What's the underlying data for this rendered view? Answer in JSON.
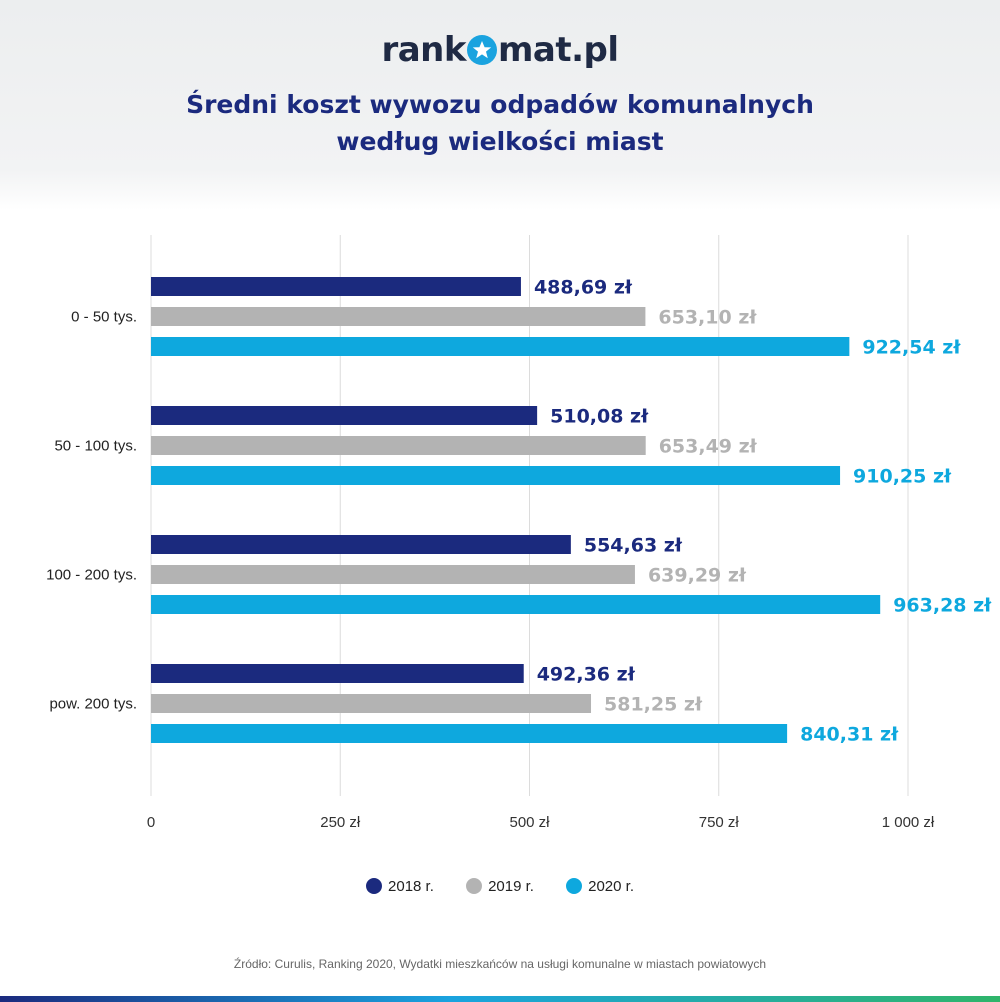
{
  "brand": {
    "logo_left": "rank",
    "logo_right": "mat.pl"
  },
  "title_line1": "Średni koszt wywozu odpadów komunalnych",
  "title_line2": "według wielkości miast",
  "legend": [
    {
      "label": "2018 r.",
      "color": "#1b2a7e"
    },
    {
      "label": "2019 r.",
      "color": "#b3b3b3"
    },
    {
      "label": "2020 r.",
      "color": "#0ea8de"
    }
  ],
  "source": "Źródło: Curulis, Ranking 2020, Wydatki mieszkańców na usługi komunalne w miastach powiatowych",
  "chart_data": {
    "type": "bar",
    "orientation": "horizontal",
    "categories": [
      "0 - 50 tys.",
      "50 - 100 tys.",
      "100 - 200 tys.",
      "pow. 200 tys."
    ],
    "series": [
      {
        "name": "2018 r.",
        "color": "#1b2a7e",
        "values": [
          488.69,
          510.08,
          554.63,
          492.36
        ],
        "labels": [
          "488,69 zł",
          "510,08 zł",
          "554,63 zł",
          "492,36 zł"
        ]
      },
      {
        "name": "2019 r.",
        "color": "#b3b3b3",
        "values": [
          653.1,
          653.49,
          639.29,
          581.25
        ],
        "labels": [
          "653,10 zł",
          "653,49 zł",
          "639,29 zł",
          "581,25 zł"
        ]
      },
      {
        "name": "2020 r.",
        "color": "#0ea8de",
        "values": [
          922.54,
          910.25,
          963.28,
          840.31
        ],
        "labels": [
          "922,54 zł",
          "910,25 zł",
          "963,28 zł",
          "840,31 zł"
        ]
      }
    ],
    "xlim": [
      0,
      1000
    ],
    "xticks": [
      0,
      250,
      500,
      750,
      1000
    ],
    "xtick_labels": [
      "0",
      "250 zł",
      "500 zł",
      "750 zł",
      "1 000 zł"
    ],
    "grid": true,
    "legend_position": "bottom"
  }
}
